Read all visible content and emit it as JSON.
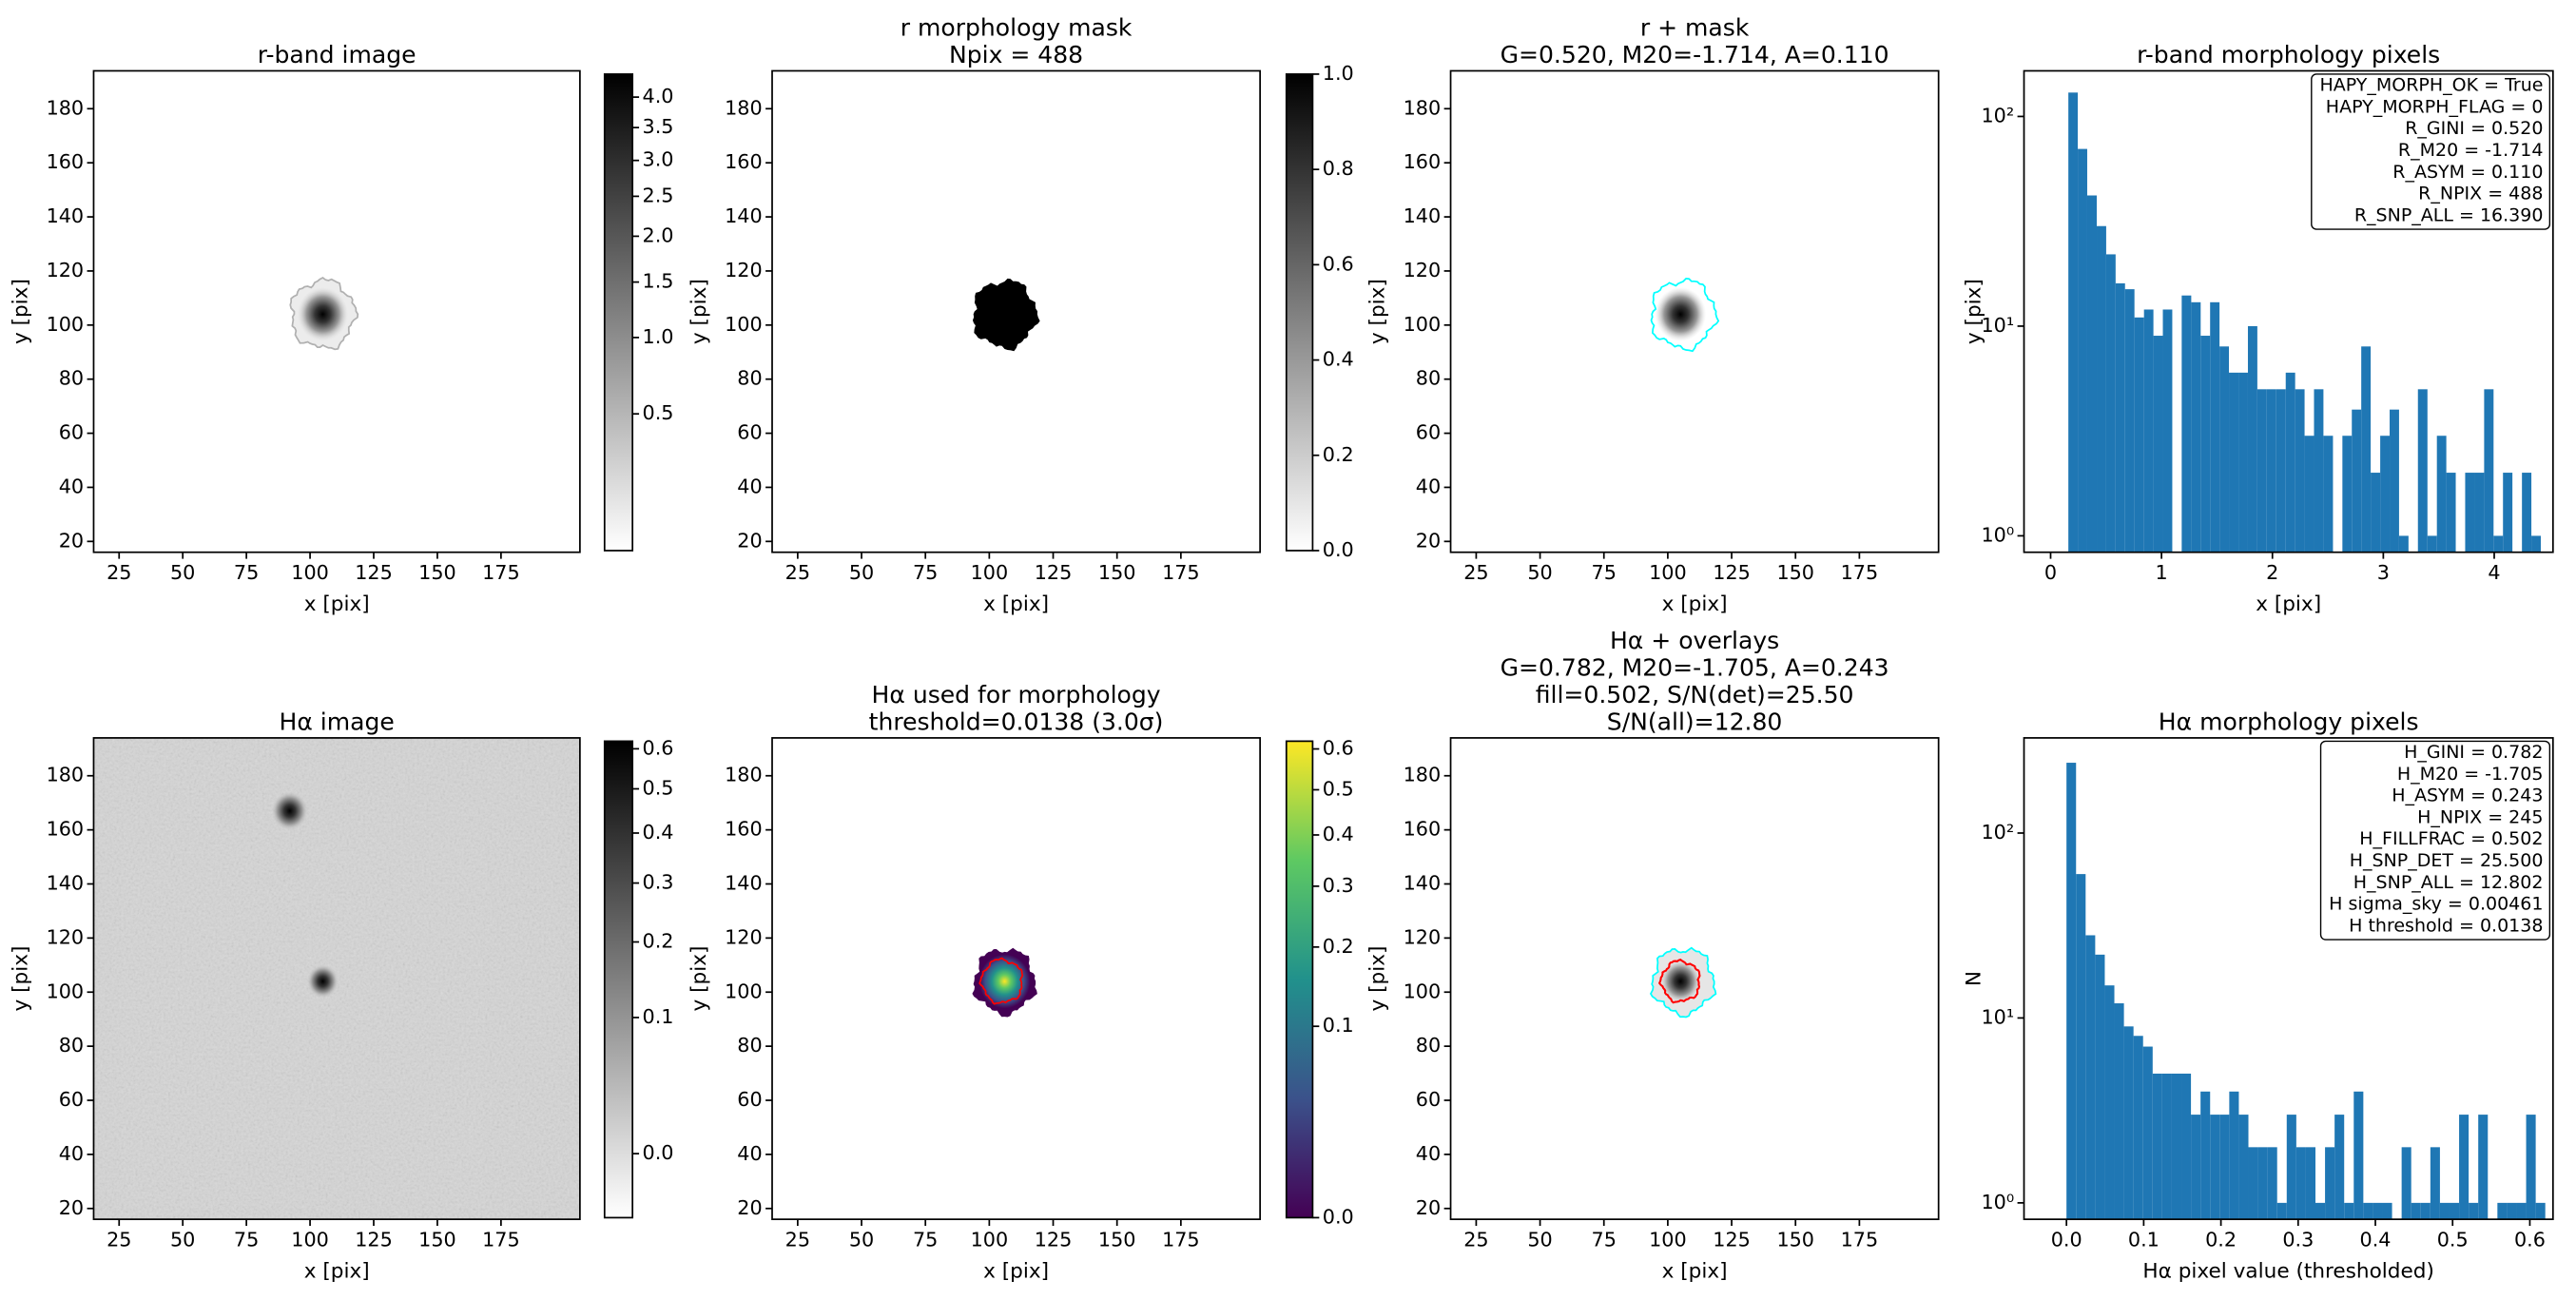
{
  "chart_data": [
    {
      "type": "image",
      "title": [
        "r-band image"
      ],
      "xlabel": "x [pix]",
      "ylabel": "y [pix]",
      "xlim": [
        15,
        206
      ],
      "ylim": [
        16,
        194
      ],
      "xticks": [
        25,
        50,
        75,
        100,
        125,
        150,
        175
      ],
      "yticks": [
        20,
        40,
        60,
        80,
        100,
        120,
        140,
        160,
        180
      ],
      "colorbar": {
        "cmap": "gray_r",
        "scale": "sqrt",
        "clim": [
          0.15,
          4.4
        ],
        "ticks": [
          0.5,
          {
            "value": 1,
            "label": "1.0"
          },
          1.5,
          {
            "value": 2,
            "label": "2.0"
          },
          2.5,
          {
            "value": 3,
            "label": "3.0"
          },
          3.5,
          {
            "value": 4,
            "label": "4.0"
          }
        ]
      }
    },
    {
      "type": "image",
      "title": [
        "r morphology mask",
        "Npix = 488"
      ],
      "xlabel": "x [pix]",
      "ylabel": "y [pix]",
      "xlim": [
        15,
        206
      ],
      "ylim": [
        16,
        194
      ],
      "xticks": [
        25,
        50,
        75,
        100,
        125,
        150,
        175
      ],
      "yticks": [
        20,
        40,
        60,
        80,
        100,
        120,
        140,
        160,
        180
      ],
      "colorbar": {
        "cmap": "gray_r",
        "scale": "linear",
        "clim": [
          0,
          1
        ],
        "ticks": [
          {
            "value": 0,
            "label": "0.0"
          },
          0.2,
          0.4,
          0.6,
          0.8,
          {
            "value": 1,
            "label": "1.0"
          }
        ]
      }
    },
    {
      "type": "image",
      "title": [
        "r + mask",
        "G=0.520, M20=-1.714, A=0.110"
      ],
      "xlabel": "x [pix]",
      "ylabel": "y [pix]",
      "xlim": [
        15,
        206
      ],
      "ylim": [
        16,
        194
      ],
      "xticks": [
        25,
        50,
        75,
        100,
        125,
        150,
        175
      ],
      "yticks": [
        20,
        40,
        60,
        80,
        100,
        120,
        140,
        160,
        180
      ]
    },
    {
      "type": "histogram",
      "title": [
        "r-band morphology pixels"
      ],
      "xlabel": "x [pix]",
      "ylabel": "y [pix]",
      "color": "#1f77b4",
      "log_y": true,
      "xlim": [
        -0.24,
        4.53
      ],
      "ylim": [
        0.835,
        165
      ],
      "xticks": [
        0,
        1,
        2,
        3,
        4
      ],
      "yticks": [
        {
          "value": 1,
          "label": "10⁰"
        },
        {
          "value": 10,
          "label": "10¹"
        },
        {
          "value": 100,
          "label": "10²"
        }
      ],
      "bins": [
        0.16,
        0.245,
        0.33,
        0.416,
        0.501,
        0.586,
        0.671,
        0.756,
        0.842,
        0.927,
        1.012,
        1.097,
        1.182,
        1.268,
        1.353,
        1.438,
        1.523,
        1.608,
        1.694,
        1.779,
        1.864,
        1.949,
        2.034,
        2.12,
        2.205,
        2.29,
        2.375,
        2.46,
        2.546,
        2.631,
        2.716,
        2.801,
        2.886,
        2.972,
        3.057,
        3.142,
        3.227,
        3.312,
        3.398,
        3.483,
        3.568,
        3.653,
        3.738,
        3.824,
        3.909,
        3.994,
        4.079,
        4.164,
        4.25,
        4.335,
        4.42
      ],
      "values": [
        130,
        70,
        42,
        30,
        22,
        16,
        15,
        11,
        12,
        9,
        12,
        0,
        14,
        13,
        9,
        13,
        8,
        6,
        6,
        10,
        5,
        5,
        5,
        6,
        5,
        3,
        5,
        3,
        0,
        3,
        4,
        8,
        2,
        3,
        4,
        1,
        0,
        5,
        1,
        3,
        2,
        0,
        2,
        2,
        5,
        1,
        2,
        0,
        2,
        1
      ],
      "textbox": [
        "HAPY_MORPH_OK = True",
        "HAPY_MORPH_FLAG = 0",
        "R_GINI = 0.520",
        "R_M20 = -1.714",
        "R_ASYM = 0.110",
        "R_NPIX = 488",
        "R_SNP_ALL = 16.390"
      ]
    },
    {
      "type": "image",
      "title": [
        "Hα image"
      ],
      "xlabel": "x [pix]",
      "ylabel": "y [pix]",
      "xlim": [
        15,
        206
      ],
      "ylim": [
        16,
        194
      ],
      "xticks": [
        25,
        50,
        75,
        100,
        125,
        150,
        175
      ],
      "yticks": [
        20,
        40,
        60,
        80,
        100,
        120,
        140,
        160,
        180
      ],
      "colorbar": {
        "cmap": "gray_r",
        "scale": "sqrt",
        "clim": [
          -0.0114,
          0.62
        ],
        "ticks": [
          {
            "value": 0,
            "label": "0.0"
          },
          0.1,
          0.2,
          0.3,
          0.4,
          0.5,
          0.6
        ]
      }
    },
    {
      "type": "image",
      "title": [
        "Hα used for morphology",
        "threshold=0.0138 (3.0σ)"
      ],
      "xlabel": "x [pix]",
      "ylabel": "y [pix]",
      "xlim": [
        15,
        206
      ],
      "ylim": [
        16,
        194
      ],
      "xticks": [
        25,
        50,
        75,
        100,
        125,
        150,
        175
      ],
      "yticks": [
        20,
        40,
        60,
        80,
        100,
        120,
        140,
        160,
        180
      ],
      "colorbar": {
        "cmap": "viridis",
        "scale": "sqrt",
        "clim": [
          0,
          0.62
        ],
        "ticks": [
          {
            "value": 0,
            "label": "0.0"
          },
          0.1,
          0.2,
          0.3,
          0.4,
          0.5,
          0.6
        ]
      }
    },
    {
      "type": "image",
      "title": [
        "Hα + overlays",
        "G=0.782, M20=-1.705, A=0.243",
        "fill=0.502, S/N(det)=25.50",
        "S/N(all)=12.80"
      ],
      "xlabel": "x [pix]",
      "ylabel": "y [pix]",
      "xlim": [
        15,
        206
      ],
      "ylim": [
        16,
        194
      ],
      "xticks": [
        25,
        50,
        75,
        100,
        125,
        150,
        175
      ],
      "yticks": [
        20,
        40,
        60,
        80,
        100,
        120,
        140,
        160,
        180
      ]
    },
    {
      "type": "histogram",
      "title": [
        "Hα morphology pixels"
      ],
      "xlabel": "Hα pixel value (thresholded)",
      "ylabel": "N",
      "color": "#1f77b4",
      "log_y": true,
      "xlim": [
        -0.055,
        0.63
      ],
      "ylim": [
        0.815,
        327
      ],
      "xticks": [
        {
          "value": 0,
          "label": "0.0"
        },
        0.1,
        0.2,
        0.3,
        0.4,
        0.5,
        0.6
      ],
      "yticks": [
        {
          "value": 1,
          "label": "10⁰"
        },
        {
          "value": 10,
          "label": "10¹"
        },
        {
          "value": 100,
          "label": "10²"
        }
      ],
      "bins": [
        0,
        0.0124,
        0.0248,
        0.0372,
        0.0496,
        0.062,
        0.0744,
        0.0868,
        0.0992,
        0.1116,
        0.124,
        0.1364,
        0.1488,
        0.1612,
        0.1736,
        0.186,
        0.1984,
        0.2108,
        0.2232,
        0.2356,
        0.248,
        0.2604,
        0.2728,
        0.2852,
        0.2976,
        0.31,
        0.3224,
        0.3348,
        0.3472,
        0.3596,
        0.372,
        0.3844,
        0.3968,
        0.4092,
        0.4216,
        0.434,
        0.4464,
        0.4588,
        0.4712,
        0.4836,
        0.496,
        0.5084,
        0.5208,
        0.5332,
        0.5456,
        0.558,
        0.5704,
        0.5828,
        0.5952,
        0.6076,
        0.62
      ],
      "values": [
        240,
        60,
        28,
        22,
        15,
        12,
        9,
        8,
        7,
        5,
        5,
        5,
        5,
        3,
        4,
        3,
        3,
        4,
        3,
        2,
        2,
        2,
        1,
        3,
        2,
        2,
        1,
        2,
        3,
        1,
        4,
        1,
        1,
        1,
        0,
        2,
        1,
        1,
        2,
        1,
        1,
        3,
        1,
        3,
        0,
        1,
        1,
        1,
        3,
        1
      ],
      "textbox": [
        "H_GINI = 0.782",
        "H_M20 = -1.705",
        "H_ASYM = 0.243",
        "H_NPIX = 245",
        "H_FILLFRAC = 0.502",
        "H_SNP_DET = 25.500",
        "H_SNP_ALL = 12.802",
        "H sigma_sky = 0.00461",
        "H threshold = 0.0138"
      ]
    }
  ]
}
